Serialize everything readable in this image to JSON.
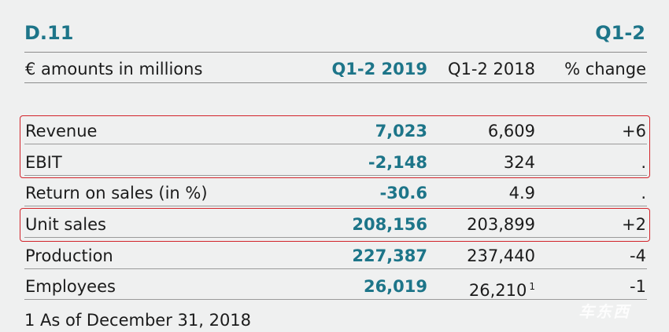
{
  "table": {
    "title": "D.11",
    "period": "Q1-2",
    "columns": {
      "label": "€ amounts in millions",
      "current": "Q1-2 2019",
      "previous": "Q1-2 2018",
      "change": "% change"
    },
    "rows": [
      {
        "label": "Revenue",
        "current": "7,023",
        "previous": "6,609",
        "change": "+6",
        "footnote_mark": ""
      },
      {
        "label": "EBIT",
        "current": "-2,148",
        "previous": "324",
        "change": ".",
        "footnote_mark": ""
      },
      {
        "label": "Return on sales (in %)",
        "current": "-30.6",
        "previous": "4.9",
        "change": ".",
        "footnote_mark": ""
      },
      {
        "label": "Unit sales",
        "current": "208,156",
        "previous": "203,899",
        "change": "+2",
        "footnote_mark": ""
      },
      {
        "label": "Production",
        "current": "227,387",
        "previous": "237,440",
        "change": "-4",
        "footnote_mark": ""
      },
      {
        "label": "Employees",
        "current": "26,019",
        "previous": "26,210",
        "change": "-1",
        "footnote_mark": "1"
      }
    ],
    "footnote": "1  As of December 31, 2018"
  },
  "highlight_color": "#d2232a",
  "accent_color": "#1d7589",
  "watermark": "车东西"
}
